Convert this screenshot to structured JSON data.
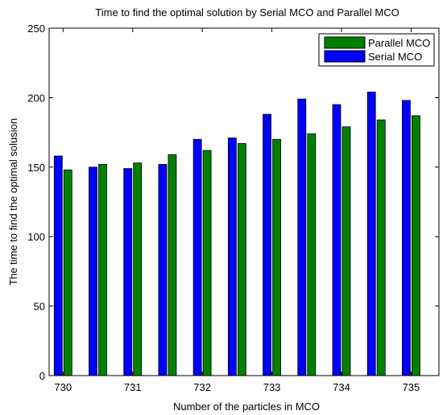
{
  "chart_data": {
    "type": "bar",
    "title": "Time to find the optimal solution by Serial MCO and Parallel MCO",
    "xlabel": "Number of the particles in MCO",
    "ylabel": "The time to find the optimal solusion",
    "x": [
      730,
      730.5,
      731,
      731.5,
      732,
      732.5,
      733,
      733.5,
      734,
      734.5,
      735
    ],
    "xlim": [
      729.8,
      735.4
    ],
    "xticks": [
      "730",
      "731",
      "732",
      "733",
      "734",
      "735"
    ],
    "ylim": [
      0,
      250
    ],
    "yticks": [
      "0",
      "50",
      "100",
      "150",
      "200",
      "250"
    ],
    "grid": false,
    "legend_position": "top-right",
    "series": [
      {
        "name": "Serial MCO",
        "color": "#0000ff",
        "values": [
          158,
          150,
          149,
          152,
          170,
          171,
          188,
          199,
          195,
          204,
          198
        ]
      },
      {
        "name": "Parallel MCO",
        "color": "#008000",
        "values": [
          148,
          152,
          153,
          159,
          162,
          167,
          170,
          174,
          179,
          184,
          187
        ]
      }
    ],
    "legend_order": [
      "Parallel MCO",
      "Serial MCO"
    ]
  }
}
